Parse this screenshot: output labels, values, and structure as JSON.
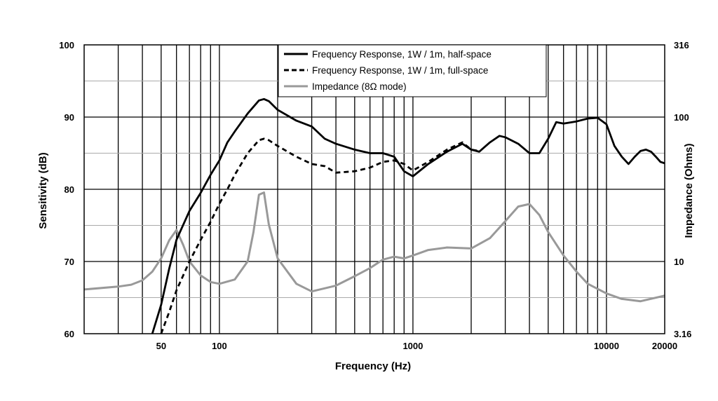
{
  "chart_data": {
    "type": "line",
    "title": "",
    "xlabel": "Frequency (Hz)",
    "ylabel": "Sensitivity (dB)",
    "y2label": "Impedance (Ohms)",
    "x_scale": "log",
    "xlim": [
      20,
      20000
    ],
    "ylim": [
      60,
      100
    ],
    "y2lim": [
      3.16,
      316
    ],
    "y2_scale": "log",
    "grid": true,
    "legend": "top-right",
    "x_tick_labels": [
      {
        "value": 50,
        "label": "50"
      },
      {
        "value": 100,
        "label": "100"
      },
      {
        "value": 1000,
        "label": "1000"
      },
      {
        "value": 10000,
        "label": "10000"
      },
      {
        "value": 20000,
        "label": "20000"
      }
    ],
    "y_tick_labels": [
      {
        "value": 60,
        "label": "60"
      },
      {
        "value": 70,
        "label": "70"
      },
      {
        "value": 80,
        "label": "80"
      },
      {
        "value": 90,
        "label": "90"
      },
      {
        "value": 100,
        "label": "100"
      }
    ],
    "y2_tick_labels": [
      {
        "value": 3.16,
        "label": "3.16"
      },
      {
        "value": 10,
        "label": "10"
      },
      {
        "value": 100,
        "label": "100"
      },
      {
        "value": 316,
        "label": "316"
      }
    ],
    "series": [
      {
        "name": "Frequency Response, 1W / 1m, half-space",
        "axis": "left",
        "style": "solid",
        "color": "#000000",
        "x": [
          45,
          50,
          55,
          60,
          70,
          80,
          90,
          100,
          110,
          120,
          140,
          160,
          170,
          180,
          200,
          250,
          300,
          350,
          400,
          500,
          600,
          700,
          800,
          900,
          1000,
          1200,
          1500,
          1800,
          2000,
          2200,
          2500,
          2800,
          3000,
          3500,
          4000,
          4500,
          5000,
          5500,
          6000,
          7000,
          8000,
          9000,
          10000,
          11000,
          12000,
          13000,
          14000,
          15000,
          16000,
          17000,
          18000,
          19000,
          20000
        ],
        "y": [
          60,
          64,
          69,
          73,
          77,
          79.5,
          82,
          84,
          86.5,
          88,
          90.5,
          92.3,
          92.5,
          92.2,
          91,
          89.5,
          88.7,
          87,
          86.3,
          85.5,
          85,
          85,
          84.5,
          82.5,
          81.8,
          83.5,
          85.2,
          86.3,
          85.5,
          85.2,
          86.5,
          87.4,
          87.2,
          86.3,
          85,
          85,
          87,
          89.3,
          89.1,
          89.4,
          89.8,
          89.9,
          89,
          86,
          84.5,
          83.5,
          84.5,
          85.3,
          85.5,
          85.2,
          84.5,
          83.8,
          83.6
        ]
      },
      {
        "name": "Frequency Response, 1W / 1m, full-space",
        "axis": "left",
        "style": "dashed",
        "color": "#000000",
        "x": [
          50,
          55,
          60,
          70,
          80,
          90,
          100,
          110,
          120,
          140,
          160,
          170,
          180,
          200,
          250,
          300,
          350,
          400,
          500,
          600,
          700,
          800,
          900,
          1000,
          1200,
          1500,
          1800,
          2000,
          2200
        ],
        "y": [
          60,
          63,
          66,
          70,
          73,
          75.5,
          78,
          80,
          82,
          85,
          86.8,
          87,
          86.8,
          86,
          84.5,
          83.5,
          83.2,
          82.3,
          82.5,
          83,
          83.8,
          84,
          83.5,
          82.6,
          83.8,
          85.5,
          86.5,
          85.5,
          85.3
        ]
      },
      {
        "name": "Impedance (8Ω mode)",
        "axis": "right",
        "style": "solid",
        "color": "#999999",
        "x": [
          20,
          30,
          35,
          40,
          45,
          50,
          55,
          60,
          65,
          70,
          80,
          90,
          100,
          120,
          140,
          150,
          160,
          170,
          180,
          200,
          250,
          300,
          400,
          500,
          600,
          700,
          800,
          900,
          1000,
          1200,
          1500,
          2000,
          2500,
          3000,
          3500,
          4000,
          4500,
          5000,
          6000,
          7000,
          8000,
          10000,
          12000,
          15000,
          20000
        ],
        "y": [
          6.4,
          6.7,
          6.9,
          7.4,
          8.5,
          10.5,
          14,
          16.5,
          13,
          10,
          8,
          7.2,
          7,
          7.5,
          10,
          16,
          29,
          30,
          18,
          10.5,
          7,
          6.2,
          6.8,
          7.9,
          9,
          10.3,
          10.8,
          10.5,
          11,
          12,
          12.5,
          12.3,
          14.5,
          19,
          24,
          25,
          21,
          16,
          11,
          8.5,
          7,
          6,
          5.5,
          5.3,
          5.8
        ]
      }
    ]
  }
}
